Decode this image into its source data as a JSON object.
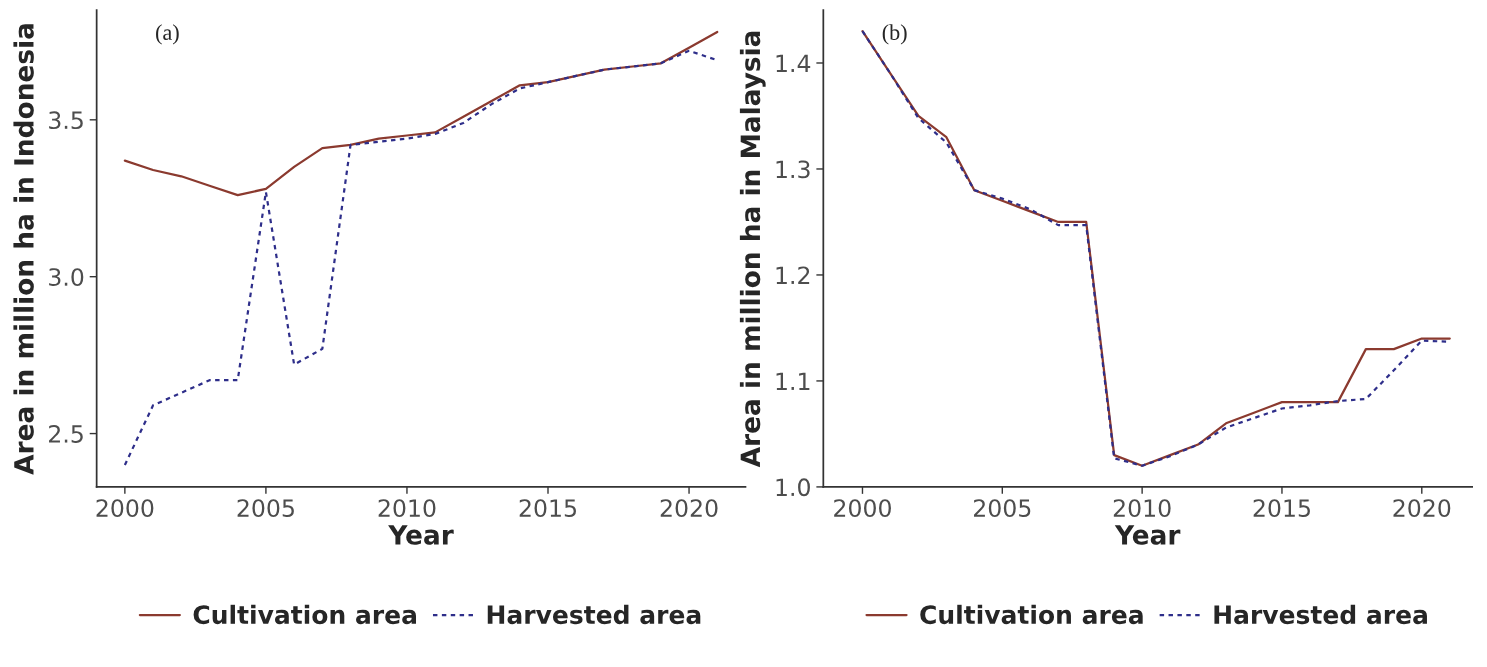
{
  "chart_data": [
    {
      "type": "line",
      "xlabel": "Year",
      "ylabel": "Area in million ha in Indonesia",
      "annotations": [
        "(a)"
      ],
      "x": [
        2000,
        2001,
        2002,
        2003,
        2004,
        2005,
        2006,
        2007,
        2008,
        2009,
        2010,
        2011,
        2012,
        2013,
        2014,
        2015,
        2016,
        2017,
        2018,
        2019,
        2020,
        2021
      ],
      "series": [
        {
          "name": "Cultivation area",
          "color": "#8b3a2f",
          "line_style": "solid",
          "values": [
            3.37,
            3.34,
            3.32,
            3.29,
            3.26,
            3.28,
            3.35,
            3.41,
            3.42,
            3.44,
            3.45,
            3.46,
            3.51,
            3.56,
            3.61,
            3.62,
            3.64,
            3.66,
            3.67,
            3.68,
            3.73,
            3.78
          ]
        },
        {
          "name": "Harvested area",
          "color": "#2e2e8a",
          "line_style": "dashed",
          "values": [
            2.4,
            2.59,
            2.63,
            2.67,
            2.67,
            3.27,
            2.72,
            2.77,
            3.42,
            3.43,
            3.44,
            3.455,
            3.49,
            3.55,
            3.6,
            3.62,
            3.64,
            3.66,
            3.67,
            3.68,
            3.72,
            3.69
          ]
        }
      ],
      "xlim": [
        1999,
        2022
      ],
      "xticks": [
        2000,
        2005,
        2010,
        2015,
        2020
      ],
      "ylim": [
        2.33,
        3.85
      ],
      "yticks": [
        2.5,
        {
          "value": 3.0,
          "label": "3.0"
        },
        3.5
      ],
      "grid": false,
      "legend": "bottom",
      "marker": "none"
    },
    {
      "type": "line",
      "xlabel": "Year",
      "ylabel": "Area in million ha in Malaysia",
      "annotations": [
        "(b)"
      ],
      "x": [
        2000,
        2001,
        2002,
        2003,
        2004,
        2005,
        2006,
        2007,
        2008,
        2009,
        2010,
        2011,
        2012,
        2013,
        2014,
        2015,
        2016,
        2017,
        2018,
        2019,
        2020,
        2021
      ],
      "series": [
        {
          "name": "Cultivation area",
          "color": "#8b3a2f",
          "line_style": "solid",
          "values": [
            1.43,
            1.39,
            1.35,
            1.33,
            1.28,
            1.27,
            1.26,
            1.25,
            1.25,
            1.03,
            1.02,
            1.03,
            1.04,
            1.06,
            1.07,
            1.08,
            1.08,
            1.08,
            1.13,
            1.13,
            1.14,
            1.14
          ]
        },
        {
          "name": "Harvested area",
          "color": "#2e2e8a",
          "line_style": "dashed",
          "values": [
            1.43,
            1.39,
            1.348,
            1.325,
            1.28,
            1.272,
            1.262,
            1.247,
            1.247,
            1.027,
            1.02,
            1.029,
            1.04,
            1.056,
            1.065,
            1.074,
            1.077,
            1.081,
            1.083,
            1.11,
            1.138,
            1.137
          ]
        }
      ],
      "xlim": [
        1998.6,
        2021.8
      ],
      "xticks": [
        2000,
        2005,
        2010,
        2015,
        2020
      ],
      "ylim": [
        1.0,
        1.45
      ],
      "yticks": [
        {
          "value": 1.0,
          "label": "1.0"
        },
        1.1,
        1.2,
        1.3,
        1.4
      ],
      "grid": false,
      "legend": "bottom",
      "marker": "none"
    }
  ]
}
